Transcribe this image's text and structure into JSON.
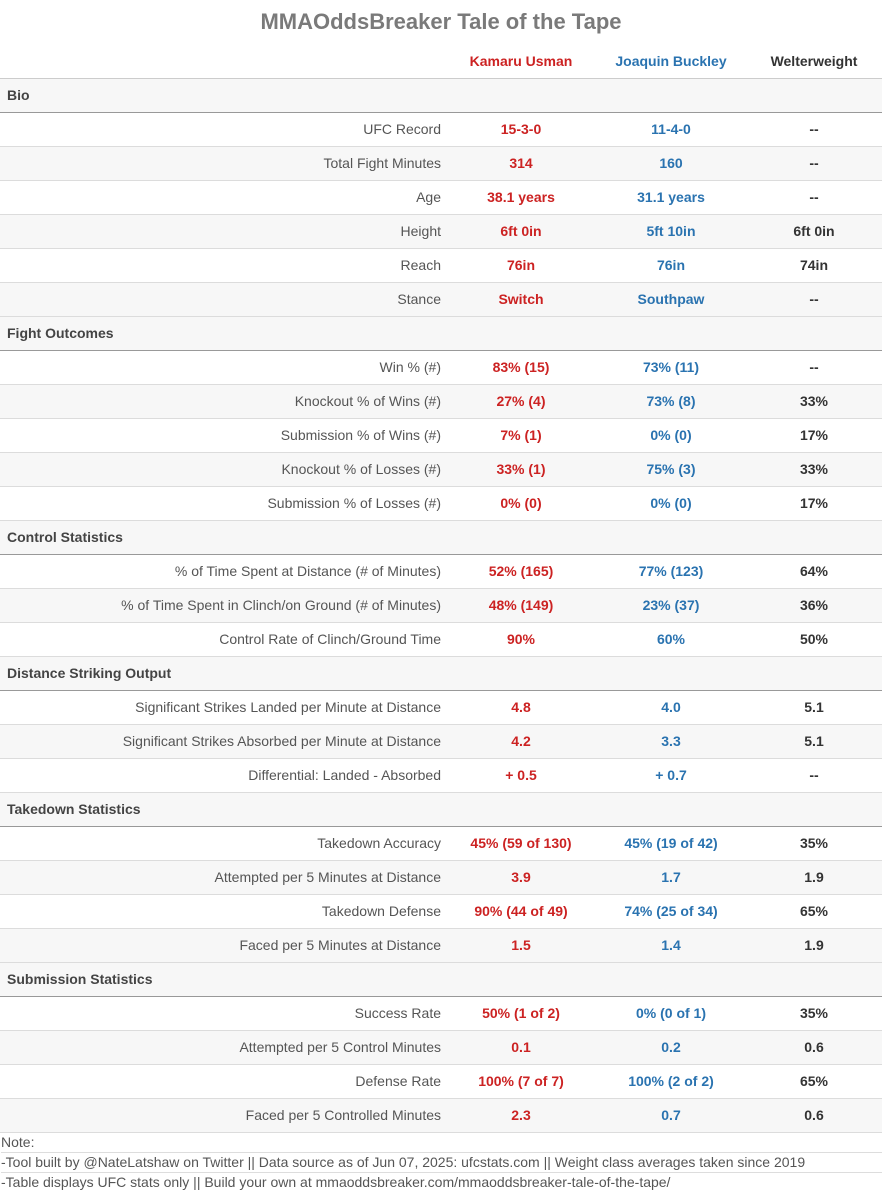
{
  "title": "MMAOddsBreaker Tale of the Tape",
  "columns": {
    "fighter1": "Kamaru Usman",
    "fighter2": "Joaquin Buckley",
    "weightclass": "Welterweight"
  },
  "colors": {
    "fighter1": "#cc2222",
    "fighter2": "#2a73b0",
    "weightclass": "#333333"
  },
  "chart_data": {
    "type": "table",
    "sections": [
      {
        "name": "Bio",
        "rows": [
          {
            "label": "UFC Record",
            "f1": "15-3-0",
            "f2": "11-4-0",
            "avg": "--"
          },
          {
            "label": "Total Fight Minutes",
            "f1": "314",
            "f2": "160",
            "avg": "--"
          },
          {
            "label": "Age",
            "f1": "38.1 years",
            "f2": "31.1 years",
            "avg": "--"
          },
          {
            "label": "Height",
            "f1": "6ft 0in",
            "f2": "5ft 10in",
            "avg": "6ft 0in"
          },
          {
            "label": "Reach",
            "f1": "76in",
            "f2": "76in",
            "avg": "74in"
          },
          {
            "label": "Stance",
            "f1": "Switch",
            "f2": "Southpaw",
            "avg": "--"
          }
        ]
      },
      {
        "name": "Fight Outcomes",
        "rows": [
          {
            "label": "Win % (#)",
            "f1": "83% (15)",
            "f2": "73% (11)",
            "avg": "--"
          },
          {
            "label": "Knockout % of Wins (#)",
            "f1": "27% (4)",
            "f2": "73% (8)",
            "avg": "33%"
          },
          {
            "label": "Submission % of Wins (#)",
            "f1": "7% (1)",
            "f2": "0% (0)",
            "avg": "17%"
          },
          {
            "label": "Knockout % of Losses (#)",
            "f1": "33% (1)",
            "f2": "75% (3)",
            "avg": "33%"
          },
          {
            "label": "Submission % of Losses (#)",
            "f1": "0% (0)",
            "f2": "0% (0)",
            "avg": "17%"
          }
        ]
      },
      {
        "name": "Control Statistics",
        "rows": [
          {
            "label": "% of Time Spent at Distance (# of Minutes)",
            "f1": "52% (165)",
            "f2": "77% (123)",
            "avg": "64%"
          },
          {
            "label": "% of Time Spent in Clinch/on Ground (# of Minutes)",
            "f1": "48% (149)",
            "f2": "23% (37)",
            "avg": "36%"
          },
          {
            "label": "Control Rate of Clinch/Ground Time",
            "f1": "90%",
            "f2": "60%",
            "avg": "50%"
          }
        ]
      },
      {
        "name": "Distance Striking Output",
        "rows": [
          {
            "label": "Significant Strikes Landed per Minute at Distance",
            "f1": "4.8",
            "f2": "4.0",
            "avg": "5.1"
          },
          {
            "label": "Significant Strikes Absorbed per Minute at Distance",
            "f1": "4.2",
            "f2": "3.3",
            "avg": "5.1"
          },
          {
            "label": "Differential: Landed - Absorbed",
            "f1": "+ 0.5",
            "f2": "+ 0.7",
            "avg": "--"
          }
        ]
      },
      {
        "name": "Takedown Statistics",
        "rows": [
          {
            "label": "Takedown Accuracy",
            "f1": "45% (59 of 130)",
            "f2": "45% (19 of 42)",
            "avg": "35%"
          },
          {
            "label": "Attempted per 5 Minutes at Distance",
            "f1": "3.9",
            "f2": "1.7",
            "avg": "1.9"
          },
          {
            "label": "Takedown Defense",
            "f1": "90% (44 of 49)",
            "f2": "74% (25 of 34)",
            "avg": "65%"
          },
          {
            "label": "Faced per 5 Minutes at Distance",
            "f1": "1.5",
            "f2": "1.4",
            "avg": "1.9"
          }
        ]
      },
      {
        "name": "Submission Statistics",
        "rows": [
          {
            "label": "Success Rate",
            "f1": "50% (1 of 2)",
            "f2": "0% (0 of 1)",
            "avg": "35%"
          },
          {
            "label": "Attempted per 5 Control Minutes",
            "f1": "0.1",
            "f2": "0.2",
            "avg": "0.6"
          },
          {
            "label": "Defense Rate",
            "f1": "100% (7 of 7)",
            "f2": "100% (2 of 2)",
            "avg": "65%"
          },
          {
            "label": "Faced per 5 Controlled Minutes",
            "f1": "2.3",
            "f2": "0.7",
            "avg": "0.6"
          }
        ]
      }
    ]
  },
  "notes": [
    "Note:",
    "-Tool built by @NateLatshaw on Twitter || Data source as of Jun 07, 2025: ufcstats.com || Weight class averages taken since 2019",
    "-Table displays UFC stats only || Build your own at mmaoddsbreaker.com/mmaoddsbreaker-tale-of-the-tape/"
  ]
}
